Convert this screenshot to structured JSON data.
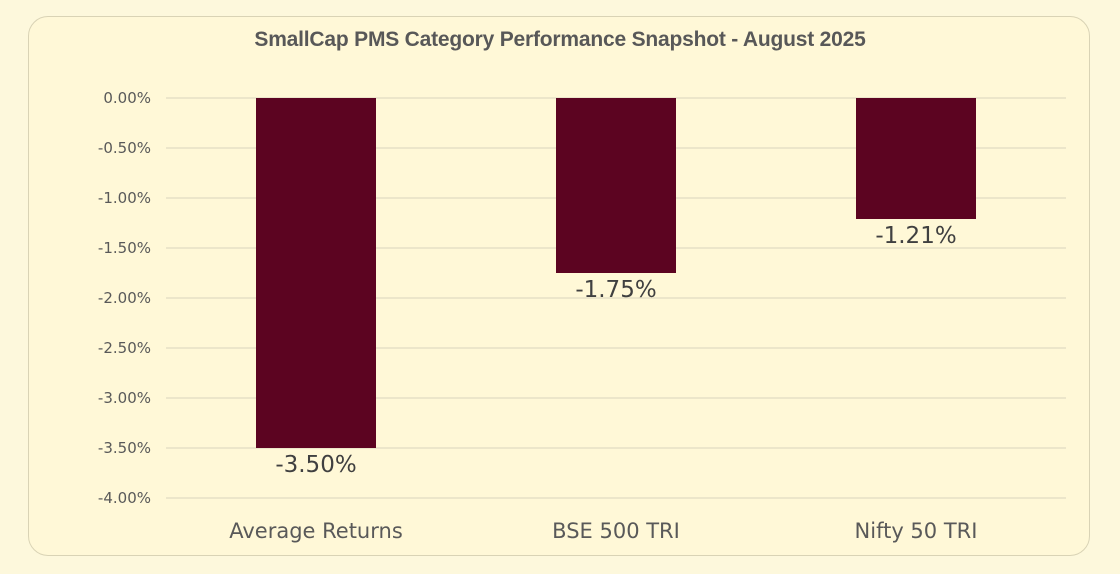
{
  "chart_data": {
    "type": "bar",
    "title": "SmallCap PMS Category Performance Snapshot - August 2025",
    "xlabel": "",
    "ylabel": "",
    "categories": [
      "Average Returns",
      "BSE 500 TRI",
      "Nifty 50 TRI"
    ],
    "values": [
      -3.5,
      -1.75,
      -1.21
    ],
    "data_labels": [
      "-3.50%",
      "-1.75%",
      "-1.21%"
    ],
    "ylim": [
      -4.0,
      0.0
    ],
    "yticks": [
      0.0,
      -0.5,
      -1.0,
      -1.5,
      -2.0,
      -2.5,
      -3.0,
      -3.5,
      -4.0
    ],
    "ytick_labels": [
      "0.00%",
      "-0.50%",
      "-1.00%",
      "-1.50%",
      "-2.00%",
      "-2.50%",
      "-3.00%",
      "-3.50%",
      "-4.00%"
    ],
    "grid": true,
    "legend": "none",
    "colors": {
      "bar": "#5c0421",
      "grid": "#d9d4bc",
      "background": "#fff8d7"
    }
  }
}
